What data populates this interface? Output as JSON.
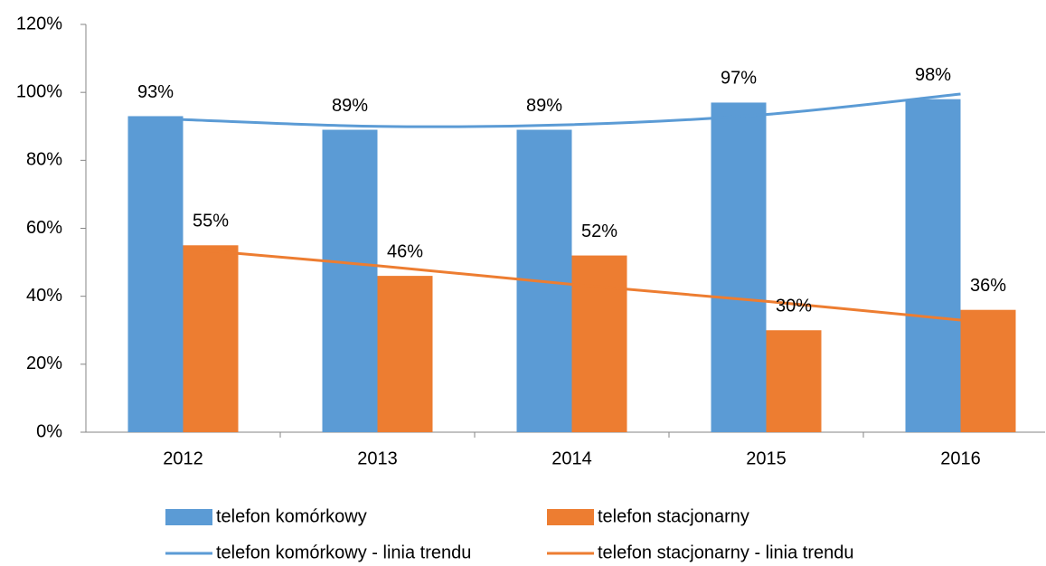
{
  "chart_data": {
    "type": "bar",
    "categories": [
      "2012",
      "2013",
      "2014",
      "2015",
      "2016"
    ],
    "series": [
      {
        "name": "telefon komórkowy",
        "type": "bar",
        "color": "#5b9bd5",
        "values": [
          93,
          89,
          89,
          97,
          98
        ],
        "value_labels": [
          "93%",
          "89%",
          "89%",
          "97%",
          "98%"
        ]
      },
      {
        "name": "telefon stacjonarny",
        "type": "bar",
        "color": "#ed7d31",
        "values": [
          55,
          46,
          52,
          30,
          36
        ],
        "value_labels": [
          "55%",
          "46%",
          "52%",
          "30%",
          "36%"
        ]
      },
      {
        "name": "telefon komórkowy - linia trendu",
        "type": "line",
        "color": "#5b9bd5",
        "values": [
          92,
          90,
          90.5,
          93.5,
          99.5
        ]
      },
      {
        "name": "telefon stacjonarny - linia trendu",
        "type": "line",
        "color": "#ed7d31",
        "values": [
          54,
          49,
          43.5,
          38.5,
          33
        ]
      }
    ],
    "ylim": [
      0,
      120
    ],
    "yticks": [
      {
        "value": 0,
        "label": "0%"
      },
      {
        "value": 20,
        "label": "20%"
      },
      {
        "value": 40,
        "label": "40%"
      },
      {
        "value": 60,
        "label": "60%"
      },
      {
        "value": 80,
        "label": "80%"
      },
      {
        "value": 100,
        "label": "100%"
      },
      {
        "value": 120,
        "label": "120%"
      }
    ],
    "grid": false
  }
}
